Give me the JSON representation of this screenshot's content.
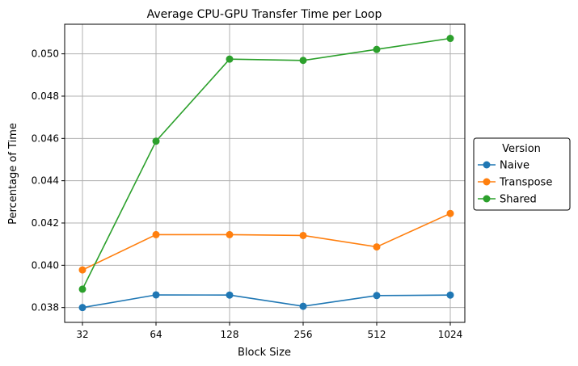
{
  "chart_data": {
    "type": "line",
    "title": "Average CPU-GPU Transfer Time per Loop",
    "xlabel": "Block Size",
    "ylabel": "Percentage of Time",
    "categories": [
      "32",
      "64",
      "128",
      "256",
      "512",
      "1024"
    ],
    "ylim": [
      0.0373,
      0.0514
    ],
    "yticks": [
      "0.038",
      "0.040",
      "0.042",
      "0.044",
      "0.046",
      "0.048",
      "0.050"
    ],
    "grid": true,
    "legend": {
      "title": "Version",
      "placement": "outside-right"
    },
    "series": [
      {
        "name": "Naive",
        "color": "#1f77b4",
        "values": [
          0.038,
          0.0386,
          0.03859,
          0.03806,
          0.03857,
          0.03859
        ]
      },
      {
        "name": "Transpose",
        "color": "#ff7f0e",
        "values": [
          0.03978,
          0.04145,
          0.04145,
          0.04141,
          0.04087,
          0.04245
        ]
      },
      {
        "name": "Shared",
        "color": "#2ca02c",
        "values": [
          0.03887,
          0.04587,
          0.04975,
          0.04969,
          0.05021,
          0.05073
        ]
      }
    ]
  }
}
